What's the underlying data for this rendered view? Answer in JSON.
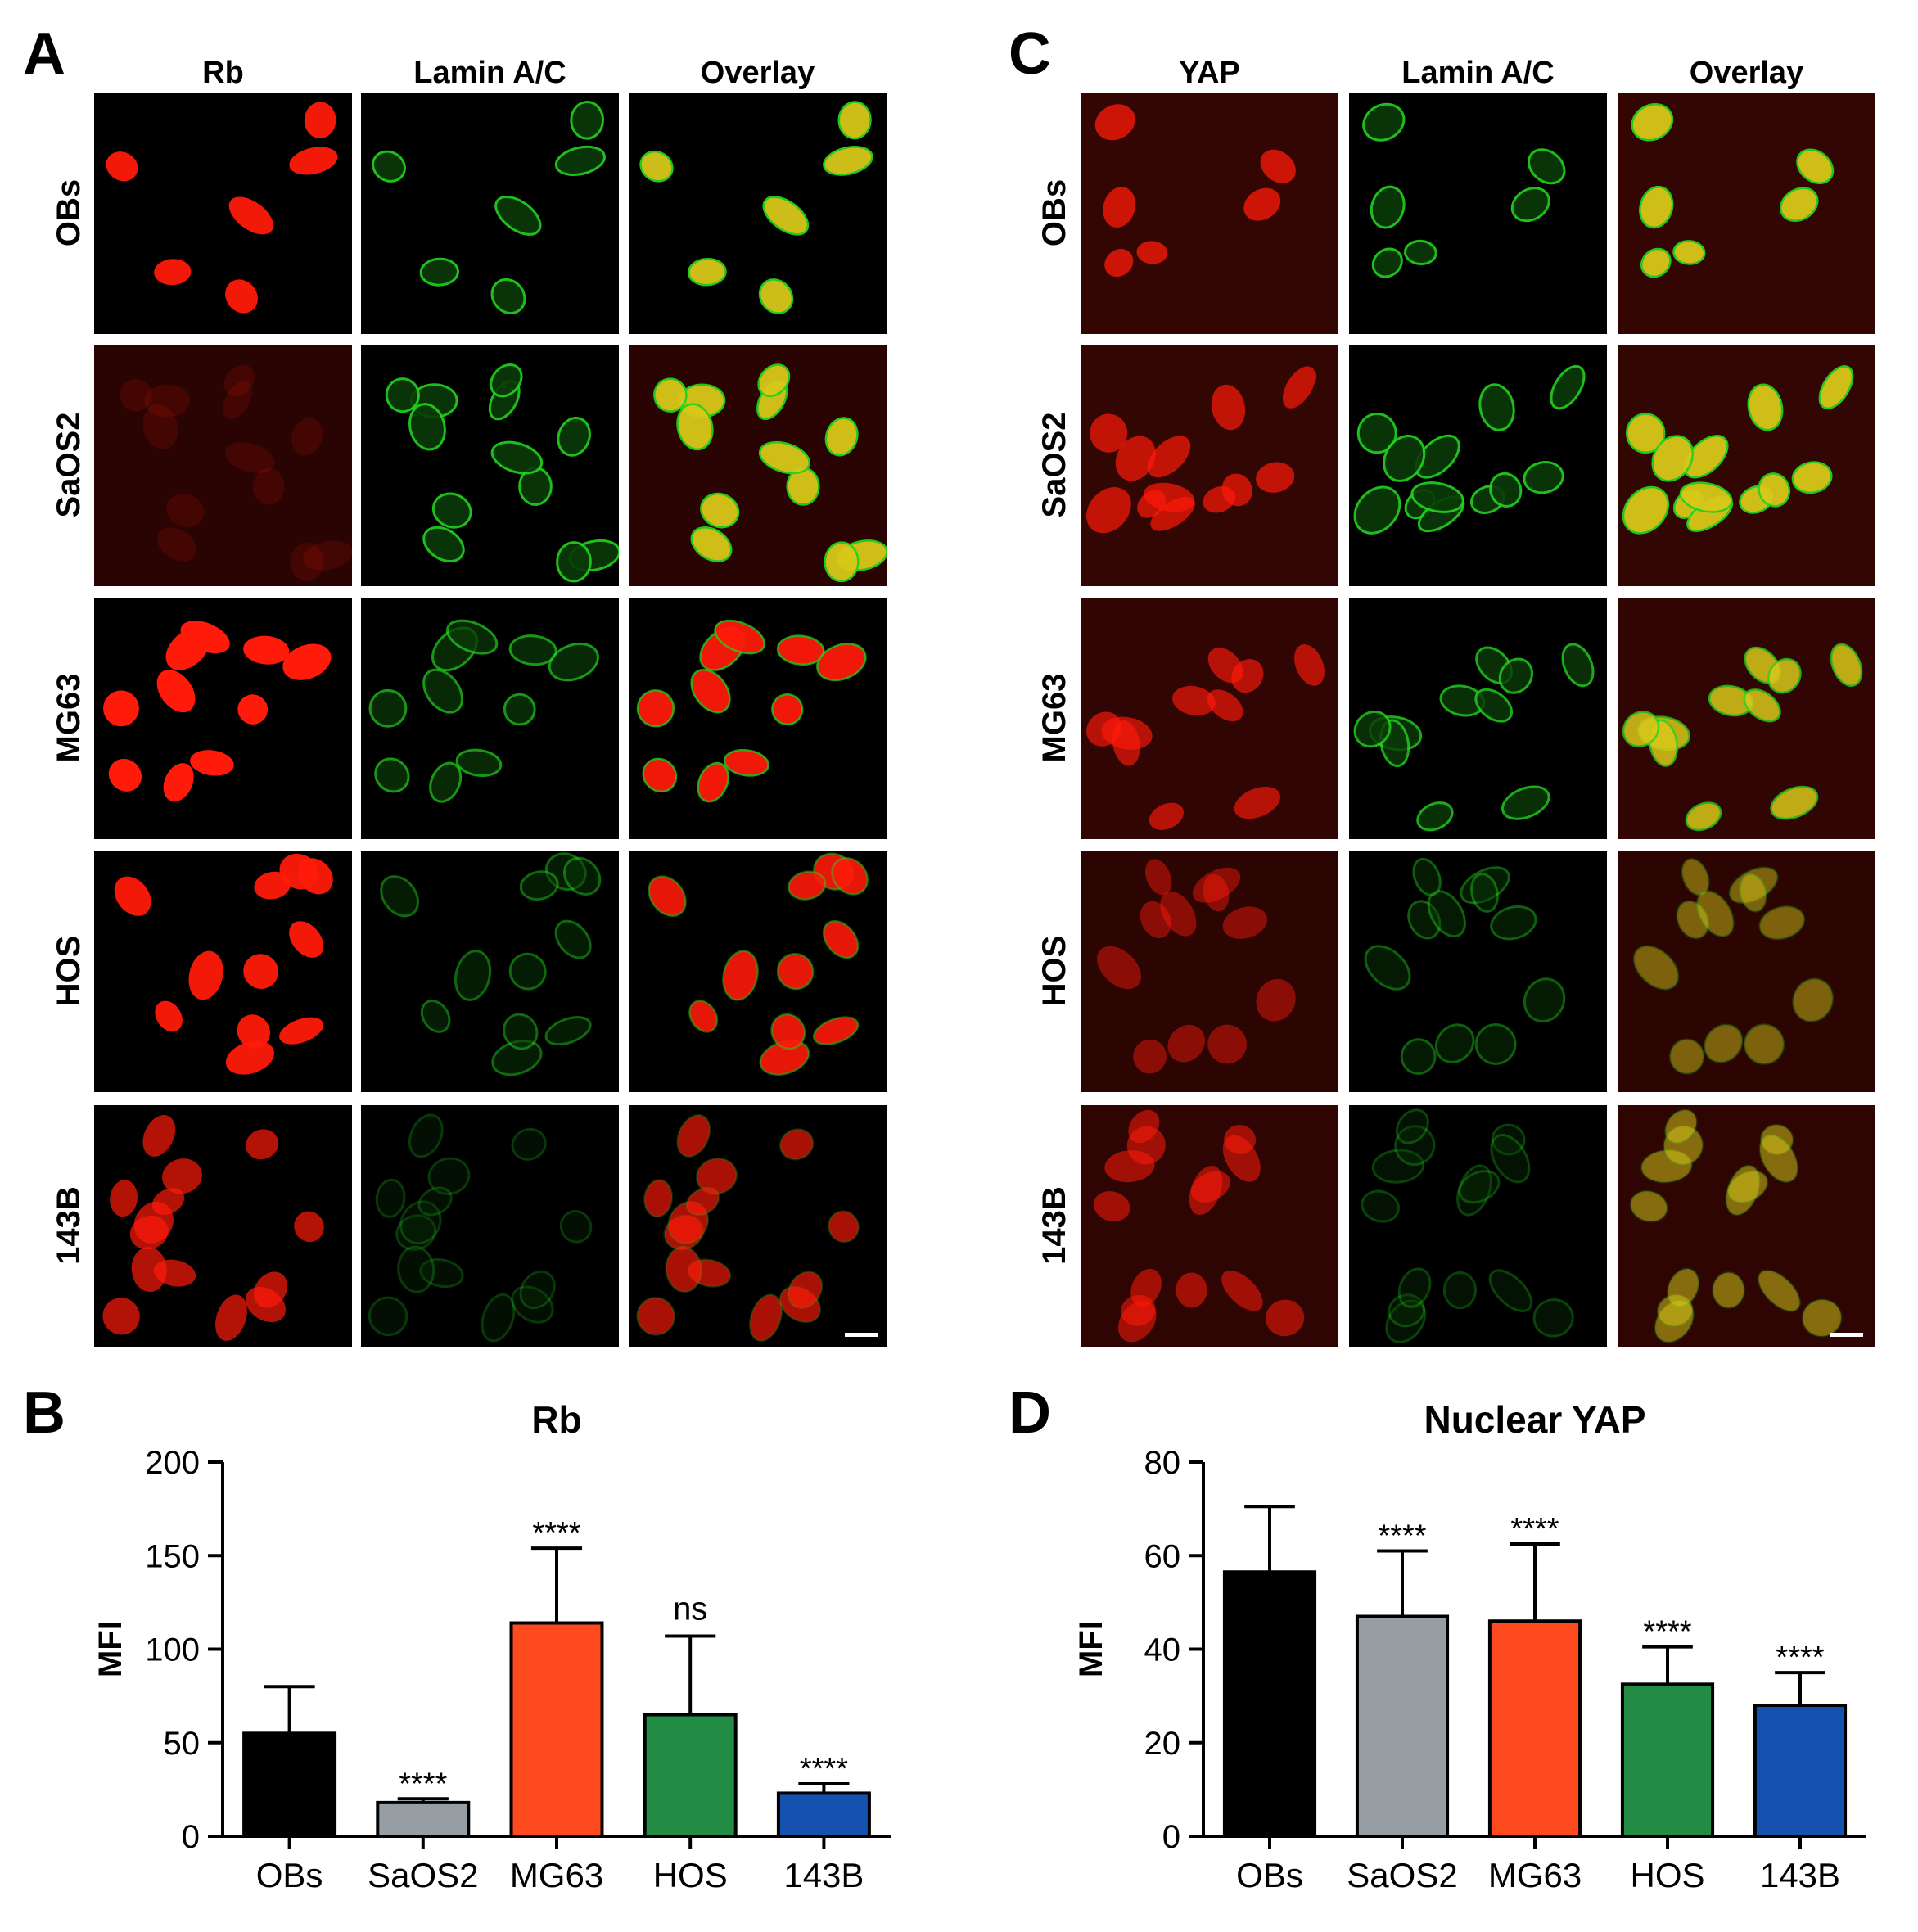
{
  "panels": {
    "A": {
      "letter": "A",
      "columns": [
        "Rb",
        "Lamin A/C",
        "Overlay"
      ],
      "rows": [
        "OBs",
        "SaOS2",
        "MG63",
        "HOS",
        "143B"
      ]
    },
    "B": {
      "letter": "B"
    },
    "C": {
      "letter": "C",
      "columns": [
        "YAP",
        "Lamin A/C",
        "Overlay"
      ],
      "rows": [
        "OBs",
        "SaOS2",
        "MG63",
        "HOS",
        "143B"
      ]
    },
    "D": {
      "letter": "D"
    }
  },
  "colors": {
    "red_channel": "#ff1a0a",
    "green_channel": "#22d41e",
    "overlay_yellow": "#d8c81a"
  },
  "chart_data": [
    {
      "type": "bar",
      "title": "Rb",
      "ylabel": "MFI",
      "xlabel": "",
      "categories": [
        "OBs",
        "SaOS2",
        "MG63",
        "HOS",
        "143B"
      ],
      "values": [
        55,
        18,
        114,
        65,
        23
      ],
      "error": [
        25,
        2,
        40,
        42,
        5
      ],
      "significance": [
        "",
        "****",
        "****",
        "ns",
        "****"
      ],
      "ylim": [
        0,
        200
      ],
      "yticks": [
        "0",
        "50",
        "100",
        "150",
        "200"
      ],
      "bar_colors": [
        "#000000",
        "#969ea3",
        "#ff4a20",
        "#228b44",
        "#1552b0"
      ]
    },
    {
      "type": "bar",
      "title": "Nuclear YAP",
      "ylabel": "MFI",
      "xlabel": "",
      "categories": [
        "OBs",
        "SaOS2",
        "MG63",
        "HOS",
        "143B"
      ],
      "values": [
        56.5,
        47,
        46,
        32.5,
        28
      ],
      "error": [
        14,
        14,
        16.5,
        8,
        7
      ],
      "significance": [
        "",
        "****",
        "****",
        "****",
        "****"
      ],
      "ylim": [
        0,
        80
      ],
      "yticks": [
        "0",
        "20",
        "40",
        "60",
        "80"
      ],
      "bar_colors": [
        "#000000",
        "#969ea3",
        "#ff4a20",
        "#228b44",
        "#1552b0"
      ]
    }
  ]
}
